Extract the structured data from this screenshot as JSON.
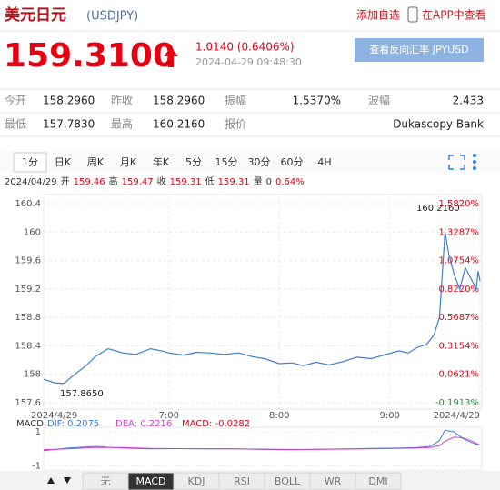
{
  "header": {
    "title": "美元日元",
    "code": "(USDJPY)",
    "add_watch": "添加自选",
    "app": "在APP中查看",
    "price": "159.3100",
    "change": "1.0140 (0.6406%)",
    "time": "2024-04-29 09:48:30",
    "reverse": "查看反向汇率 JPYUSD"
  },
  "stats": [
    [
      "今开",
      "158.2960",
      "昨收",
      "158.2960",
      "振幅",
      "1.5370%",
      "波幅",
      "2.433"
    ],
    [
      "最低",
      "157.7830",
      "最高",
      "160.2160",
      "报价",
      "Dukascopy Bank"
    ]
  ],
  "tabs": [
    "1分",
    "日K",
    "周K",
    "月K",
    "年K",
    "5分",
    "15分",
    "30分",
    "60分",
    "4H"
  ],
  "info": [
    "2024/04/29",
    "开",
    "159.46",
    "高",
    "159.47",
    "收",
    "159.31",
    "低",
    "159.31",
    "量",
    "0",
    "0.64%"
  ],
  "buttons": [
    "无",
    "MACD",
    "KDJ",
    "RSI",
    "BOLL",
    "WR",
    "DMI"
  ],
  "chart_data": [
    {
      "type": "line",
      "color": "#3b7dd8",
      "grid": true,
      "x": [
        352,
        358,
        363,
        368,
        375,
        380,
        387,
        395,
        402,
        410,
        416,
        420,
        428,
        435,
        442,
        450,
        458,
        465,
        472,
        480,
        487,
        493,
        500,
        507,
        515,
        522,
        530,
        538,
        545,
        550,
        555,
        560,
        564,
        567,
        570,
        572,
        575,
        578,
        581,
        584,
        587,
        588,
        589
      ],
      "values": [
        157.93,
        157.88,
        157.87,
        157.98,
        158.12,
        158.25,
        158.36,
        158.3,
        158.28,
        158.36,
        158.33,
        158.3,
        158.27,
        158.31,
        158.3,
        158.28,
        158.3,
        158.25,
        158.22,
        158.15,
        158.16,
        158.12,
        158.17,
        158.13,
        158.18,
        158.24,
        158.22,
        158.28,
        158.33,
        158.3,
        158.38,
        158.42,
        158.55,
        158.8,
        160.0,
        159.7,
        159.4,
        159.2,
        159.5,
        159.35,
        159.2,
        159.45,
        159.31
      ],
      "xlim": [
        352,
        590
      ],
      "xticks": [
        {
          "value": 352,
          "label": "2024/4/29"
        },
        {
          "value": 420,
          "label": "7:00"
        },
        {
          "value": 480,
          "label": "8:00"
        },
        {
          "value": 540,
          "label": "9:00"
        },
        {
          "value": 589,
          "label": "2024/4/29"
        }
      ],
      "ylim": [
        157.6,
        160.4
      ],
      "yticks": [
        157.6,
        158,
        158.4,
        158.8,
        159.2,
        159.6,
        160,
        160.4
      ],
      "y2lim": [
        -0.1913,
        1.582
      ],
      "y2ticks": [
        {
          "value": 1.582,
          "label": "1.5820%"
        },
        {
          "value": 1.3287,
          "label": "1.3287%"
        },
        {
          "value": 1.0754,
          "label": "1.0754%"
        },
        {
          "value": 0.822,
          "label": "0.8220%"
        },
        {
          "value": 0.5687,
          "label": "0.5687%"
        },
        {
          "value": 0.3154,
          "label": "0.3154%"
        },
        {
          "value": 0.0621,
          "label": "0.0621%"
        },
        {
          "value": -0.1913,
          "label": "-0.1913%"
        }
      ],
      "annotations": [
        "160.2160",
        "157.8650"
      ]
    },
    {
      "type": "line",
      "title": "MACD",
      "x": [
        352,
        365,
        380,
        395,
        410,
        425,
        440,
        455,
        470,
        485,
        500,
        515,
        530,
        545,
        555,
        562,
        567,
        570,
        575,
        580,
        585,
        589
      ],
      "xlim": [
        352,
        590
      ],
      "series": [
        {
          "name": "DIF: 0.2075",
          "color": "#3b7dd8",
          "values": [
            -0.1,
            0.05,
            0.15,
            0.05,
            0,
            0.02,
            0,
            0.01,
            -0.03,
            -0.05,
            -0.02,
            0,
            0.03,
            0.05,
            0.08,
            0.15,
            0.5,
            1.1,
            1.0,
            0.6,
            0.35,
            0.21
          ]
        },
        {
          "name": "DEA: 0.2216",
          "color": "#d63fd6",
          "values": [
            -0.05,
            0,
            0.08,
            0.08,
            0.03,
            0.02,
            0.01,
            0,
            -0.01,
            -0.03,
            -0.03,
            -0.01,
            0.01,
            0.03,
            0.05,
            0.08,
            0.2,
            0.45,
            0.7,
            0.65,
            0.45,
            0.22
          ]
        }
      ],
      "annotations": [
        "MACD: -0.0282"
      ],
      "ylim": [
        -1.4,
        1.65
      ],
      "yticks": [
        1,
        -1
      ]
    }
  ]
}
